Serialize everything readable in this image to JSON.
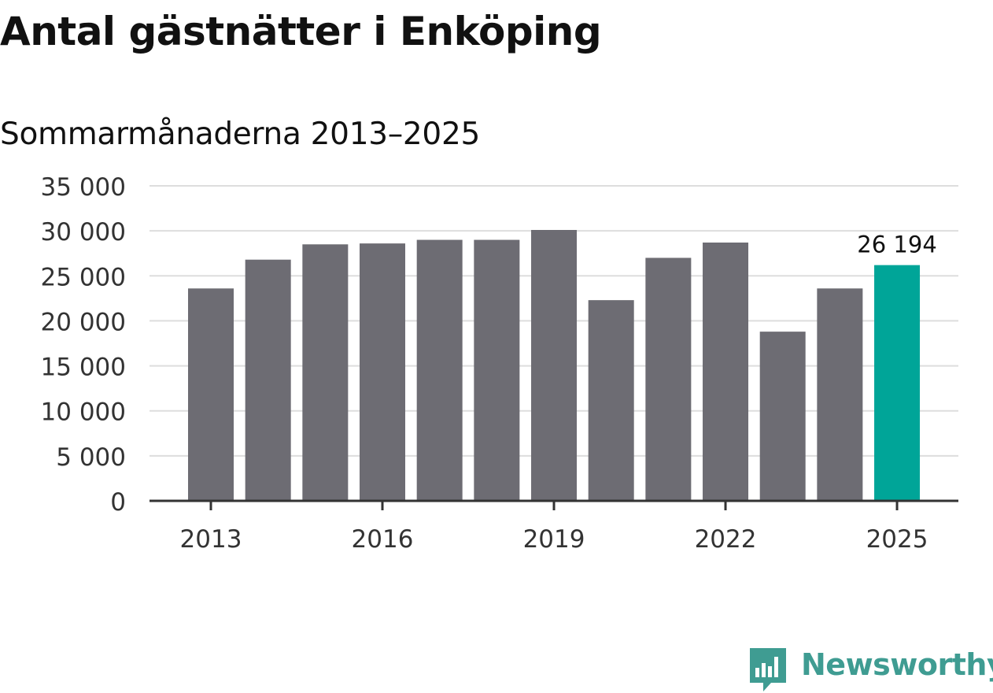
{
  "header": {
    "title": "Antal gästnätter i Enköping",
    "subtitle": "Sommarmånaderna 2013–2025"
  },
  "branding": {
    "name": "Newsworthy",
    "logo_icon": "bar-chart-speech-bubble-icon",
    "color": "#3f9c92"
  },
  "colors": {
    "bar_default": "#6d6c73",
    "bar_highlight": "#00a598",
    "gridline": "#dddddd",
    "axis": "#333333",
    "tick_label": "#333333"
  },
  "chart_data": {
    "type": "bar",
    "x": [
      2013,
      2014,
      2015,
      2016,
      2017,
      2018,
      2019,
      2020,
      2021,
      2022,
      2023,
      2024,
      2025
    ],
    "values": [
      23600,
      26800,
      28500,
      28600,
      29000,
      29000,
      30100,
      22300,
      27000,
      28700,
      18800,
      23600,
      26194
    ],
    "highlight_index": 12,
    "data_labels": [
      {
        "index": 12,
        "text": "26 194"
      }
    ],
    "xticks": [
      "2013",
      "2016",
      "2019",
      "2022",
      "2025"
    ],
    "xtick_years": [
      2013,
      2016,
      2019,
      2022,
      2025
    ],
    "yticks": [
      "0",
      "5 000",
      "10 000",
      "15 000",
      "20 000",
      "25 000",
      "30 000",
      "35 000"
    ],
    "ytick_values": [
      0,
      5000,
      10000,
      15000,
      20000,
      25000,
      30000,
      35000
    ],
    "ylim": [
      0,
      35000
    ],
    "grid": true,
    "legend": false
  }
}
